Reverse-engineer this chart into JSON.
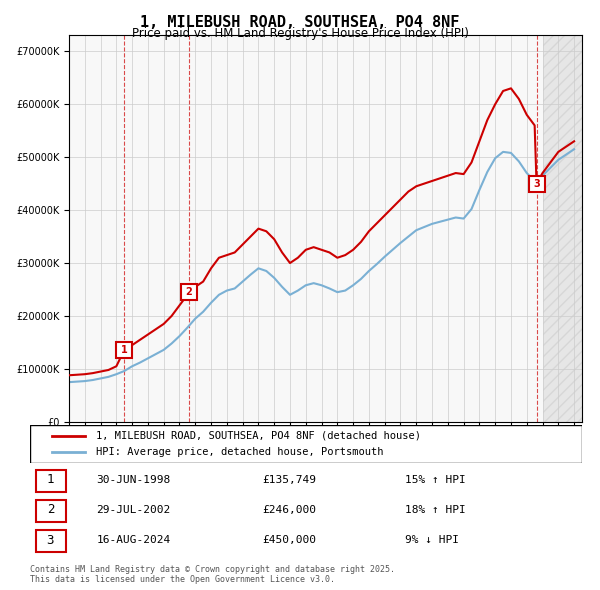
{
  "title": "1, MILEBUSH ROAD, SOUTHSEA, PO4 8NF",
  "subtitle": "Price paid vs. HM Land Registry's House Price Index (HPI)",
  "legend_line1": "1, MILEBUSH ROAD, SOUTHSEA, PO4 8NF (detached house)",
  "legend_line2": "HPI: Average price, detached house, Portsmouth",
  "red_color": "#cc0000",
  "blue_color": "#7ab0d4",
  "background_color": "#f5f5f5",
  "transactions": [
    {
      "num": 1,
      "date": "30-JUN-1998",
      "price": 135749,
      "hpi_pct": "15%",
      "hpi_dir": "↑"
    },
    {
      "num": 2,
      "date": "29-JUL-2002",
      "price": 246000,
      "hpi_pct": "18%",
      "hpi_dir": "↑"
    },
    {
      "num": 3,
      "date": "16-AUG-2024",
      "price": 450000,
      "hpi_pct": "9%",
      "hpi_dir": "↓"
    }
  ],
  "transaction_years": [
    1998.5,
    2002.58,
    2024.62
  ],
  "transaction_prices": [
    135749,
    246000,
    450000
  ],
  "ylim": [
    0,
    730000
  ],
  "yticks": [
    0,
    100000,
    200000,
    300000,
    400000,
    500000,
    600000,
    700000
  ],
  "footer": "Contains HM Land Registry data © Crown copyright and database right 2025.\nThis data is licensed under the Open Government Licence v3.0.",
  "red_line_data": {
    "years": [
      1995.0,
      1995.5,
      1996.0,
      1996.5,
      1997.0,
      1997.5,
      1998.0,
      1998.5,
      1999.0,
      1999.5,
      2000.0,
      2000.5,
      2001.0,
      2001.5,
      2002.0,
      2002.5,
      2002.58,
      2003.0,
      2003.5,
      2004.0,
      2004.5,
      2005.0,
      2005.5,
      2006.0,
      2006.5,
      2007.0,
      2007.5,
      2008.0,
      2008.5,
      2009.0,
      2009.5,
      2010.0,
      2010.5,
      2011.0,
      2011.5,
      2012.0,
      2012.5,
      2013.0,
      2013.5,
      2014.0,
      2014.5,
      2015.0,
      2015.5,
      2016.0,
      2016.5,
      2017.0,
      2017.5,
      2018.0,
      2018.5,
      2019.0,
      2019.5,
      2020.0,
      2020.5,
      2021.0,
      2021.5,
      2022.0,
      2022.5,
      2023.0,
      2023.5,
      2024.0,
      2024.5,
      2024.62,
      2025.0,
      2025.5,
      2026.0,
      2026.5,
      2027.0
    ],
    "values": [
      88000,
      89000,
      90000,
      92000,
      95000,
      98000,
      105000,
      135749,
      145000,
      155000,
      165000,
      175000,
      185000,
      200000,
      220000,
      240000,
      246000,
      255000,
      265000,
      290000,
      310000,
      315000,
      320000,
      335000,
      350000,
      365000,
      360000,
      345000,
      320000,
      300000,
      310000,
      325000,
      330000,
      325000,
      320000,
      310000,
      315000,
      325000,
      340000,
      360000,
      375000,
      390000,
      405000,
      420000,
      435000,
      445000,
      450000,
      455000,
      460000,
      465000,
      470000,
      468000,
      490000,
      530000,
      570000,
      600000,
      625000,
      630000,
      610000,
      580000,
      560000,
      450000,
      470000,
      490000,
      510000,
      520000,
      530000
    ]
  },
  "blue_line_data": {
    "years": [
      1995.0,
      1995.5,
      1996.0,
      1996.5,
      1997.0,
      1997.5,
      1998.0,
      1998.5,
      1999.0,
      1999.5,
      2000.0,
      2000.5,
      2001.0,
      2001.5,
      2002.0,
      2002.5,
      2003.0,
      2003.5,
      2004.0,
      2004.5,
      2005.0,
      2005.5,
      2006.0,
      2006.5,
      2007.0,
      2007.5,
      2008.0,
      2008.5,
      2009.0,
      2009.5,
      2010.0,
      2010.5,
      2011.0,
      2011.5,
      2012.0,
      2012.5,
      2013.0,
      2013.5,
      2014.0,
      2014.5,
      2015.0,
      2015.5,
      2016.0,
      2016.5,
      2017.0,
      2017.5,
      2018.0,
      2018.5,
      2019.0,
      2019.5,
      2020.0,
      2020.5,
      2021.0,
      2021.5,
      2022.0,
      2022.5,
      2023.0,
      2023.5,
      2024.0,
      2024.5,
      2025.0,
      2025.5,
      2026.0,
      2026.5,
      2027.0
    ],
    "values": [
      75000,
      76000,
      77000,
      79000,
      82000,
      85000,
      90000,
      96000,
      105000,
      112000,
      120000,
      128000,
      136000,
      148000,
      162000,
      178000,
      195000,
      208000,
      225000,
      240000,
      248000,
      252000,
      265000,
      278000,
      290000,
      285000,
      272000,
      255000,
      240000,
      248000,
      258000,
      262000,
      258000,
      252000,
      245000,
      248000,
      258000,
      270000,
      285000,
      298000,
      312000,
      325000,
      338000,
      350000,
      362000,
      368000,
      374000,
      378000,
      382000,
      386000,
      384000,
      402000,
      438000,
      472000,
      498000,
      510000,
      508000,
      492000,
      470000,
      455000,
      465000,
      480000,
      495000,
      505000,
      515000
    ]
  }
}
